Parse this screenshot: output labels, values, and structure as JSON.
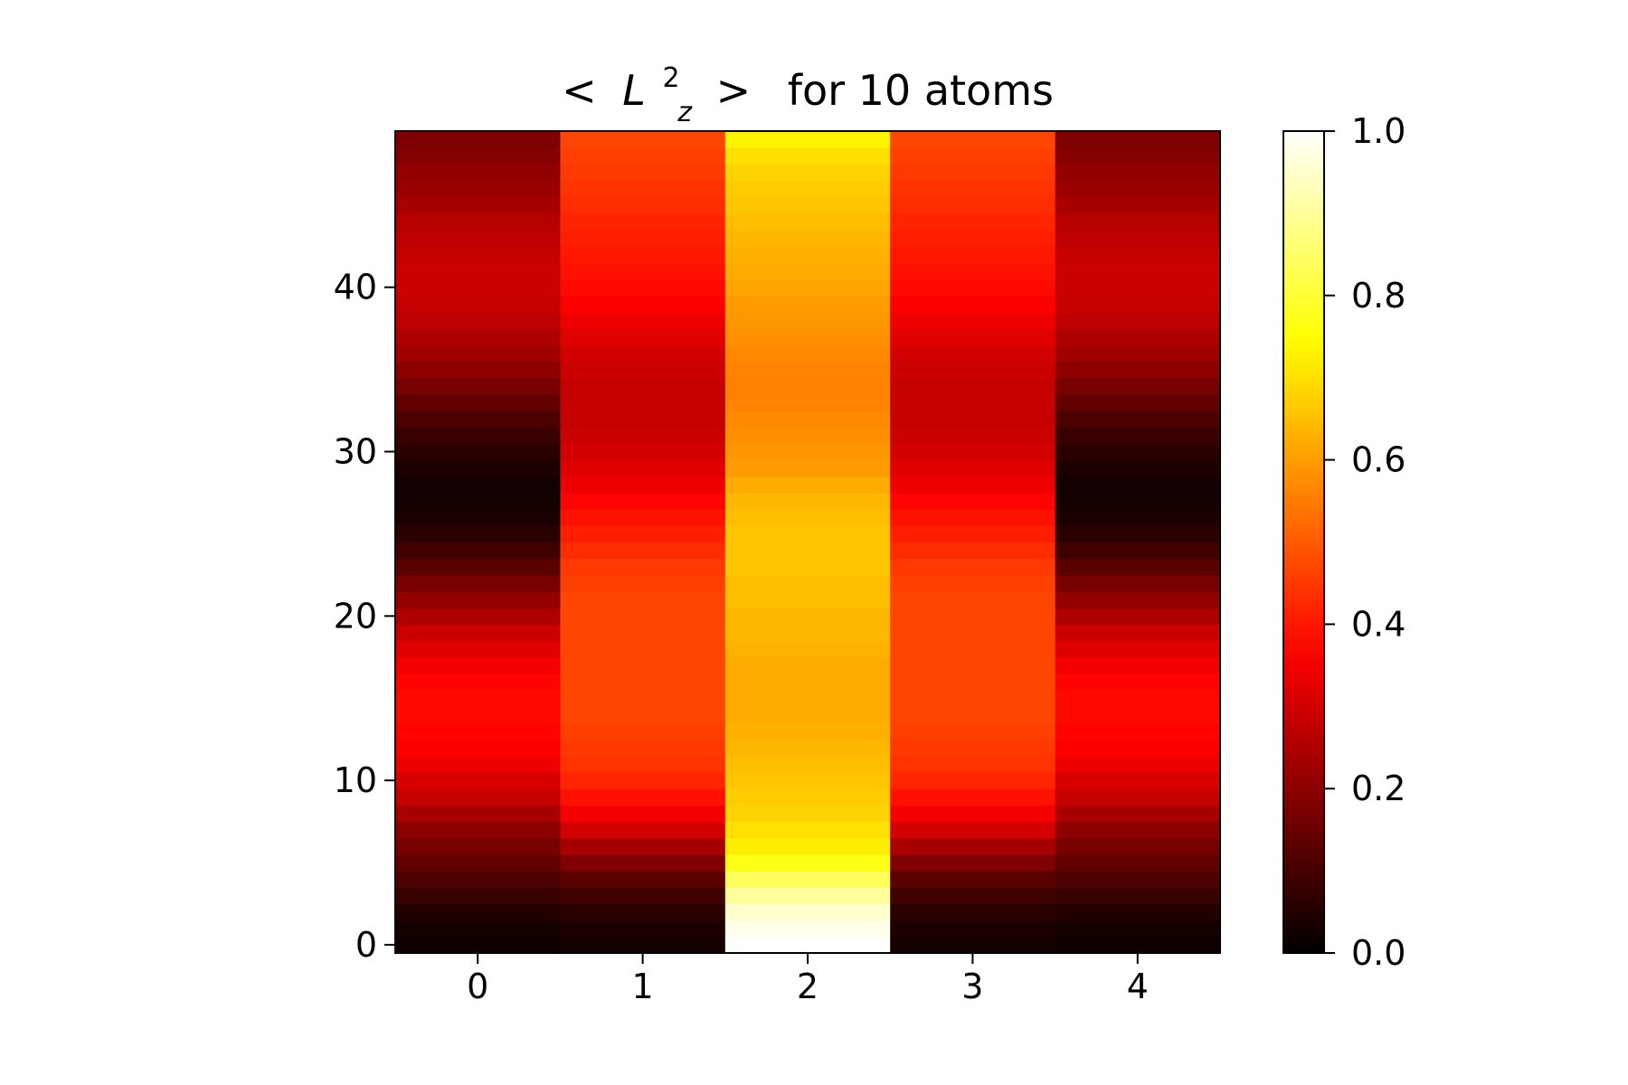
{
  "chart_data": {
    "type": "heatmap",
    "title_parts": {
      "open": "<",
      "symbol": "L",
      "superscript": "2",
      "subscript": "z",
      "close": ">",
      "rest": "for 10 atoms"
    },
    "title": "< L_z^2 >  for 10 atoms",
    "xlabel": "",
    "ylabel": "",
    "colormap": "hot",
    "x_ticks": [
      "0",
      "1",
      "2",
      "3",
      "4"
    ],
    "y_ticks": [
      "0",
      "10",
      "20",
      "30",
      "40"
    ],
    "colorbar_ticks": [
      "0.0",
      "0.2",
      "0.4",
      "0.6",
      "0.8",
      "1.0"
    ],
    "colorbar_range": [
      0.0,
      1.0
    ],
    "n_columns": 5,
    "n_rows": 50,
    "columns": [
      {
        "x": 0,
        "values": [
          0.02,
          0.03,
          0.05,
          0.08,
          0.11,
          0.14,
          0.17,
          0.2,
          0.24,
          0.28,
          0.31,
          0.34,
          0.36,
          0.37,
          0.38,
          0.38,
          0.37,
          0.35,
          0.32,
          0.29,
          0.25,
          0.21,
          0.17,
          0.13,
          0.09,
          0.06,
          0.04,
          0.03,
          0.03,
          0.04,
          0.06,
          0.08,
          0.11,
          0.14,
          0.17,
          0.2,
          0.23,
          0.25,
          0.27,
          0.28,
          0.29,
          0.29,
          0.28,
          0.27,
          0.26,
          0.24,
          0.22,
          0.21,
          0.19,
          0.18
        ]
      },
      {
        "x": 1,
        "values": [
          0.03,
          0.04,
          0.06,
          0.09,
          0.13,
          0.18,
          0.24,
          0.3,
          0.35,
          0.39,
          0.42,
          0.44,
          0.45,
          0.46,
          0.47,
          0.47,
          0.47,
          0.47,
          0.47,
          0.47,
          0.47,
          0.47,
          0.46,
          0.45,
          0.43,
          0.41,
          0.39,
          0.37,
          0.34,
          0.32,
          0.3,
          0.29,
          0.28,
          0.28,
          0.28,
          0.29,
          0.3,
          0.32,
          0.34,
          0.36,
          0.38,
          0.39,
          0.4,
          0.41,
          0.42,
          0.43,
          0.44,
          0.45,
          0.46,
          0.47
        ]
      },
      {
        "x": 2,
        "values": [
          1.0,
          0.98,
          0.95,
          0.9,
          0.84,
          0.77,
          0.72,
          0.7,
          0.68,
          0.67,
          0.66,
          0.65,
          0.64,
          0.63,
          0.62,
          0.62,
          0.62,
          0.62,
          0.63,
          0.64,
          0.64,
          0.65,
          0.65,
          0.66,
          0.66,
          0.66,
          0.65,
          0.64,
          0.62,
          0.6,
          0.59,
          0.58,
          0.57,
          0.56,
          0.56,
          0.56,
          0.57,
          0.58,
          0.59,
          0.6,
          0.61,
          0.62,
          0.63,
          0.64,
          0.65,
          0.66,
          0.67,
          0.68,
          0.7,
          0.73
        ]
      },
      {
        "x": 3,
        "values": [
          0.03,
          0.04,
          0.06,
          0.09,
          0.13,
          0.18,
          0.24,
          0.3,
          0.35,
          0.39,
          0.42,
          0.44,
          0.45,
          0.46,
          0.47,
          0.47,
          0.47,
          0.47,
          0.47,
          0.47,
          0.47,
          0.47,
          0.46,
          0.45,
          0.43,
          0.41,
          0.39,
          0.37,
          0.34,
          0.32,
          0.3,
          0.29,
          0.28,
          0.28,
          0.28,
          0.29,
          0.3,
          0.32,
          0.34,
          0.36,
          0.38,
          0.39,
          0.4,
          0.41,
          0.42,
          0.43,
          0.44,
          0.45,
          0.46,
          0.47
        ]
      },
      {
        "x": 4,
        "values": [
          0.02,
          0.03,
          0.05,
          0.08,
          0.11,
          0.14,
          0.17,
          0.2,
          0.24,
          0.28,
          0.31,
          0.34,
          0.36,
          0.37,
          0.38,
          0.38,
          0.37,
          0.35,
          0.32,
          0.29,
          0.25,
          0.21,
          0.17,
          0.13,
          0.09,
          0.06,
          0.04,
          0.03,
          0.03,
          0.04,
          0.06,
          0.08,
          0.11,
          0.14,
          0.17,
          0.2,
          0.23,
          0.25,
          0.27,
          0.28,
          0.29,
          0.29,
          0.28,
          0.27,
          0.26,
          0.24,
          0.22,
          0.21,
          0.19,
          0.18
        ]
      }
    ]
  }
}
